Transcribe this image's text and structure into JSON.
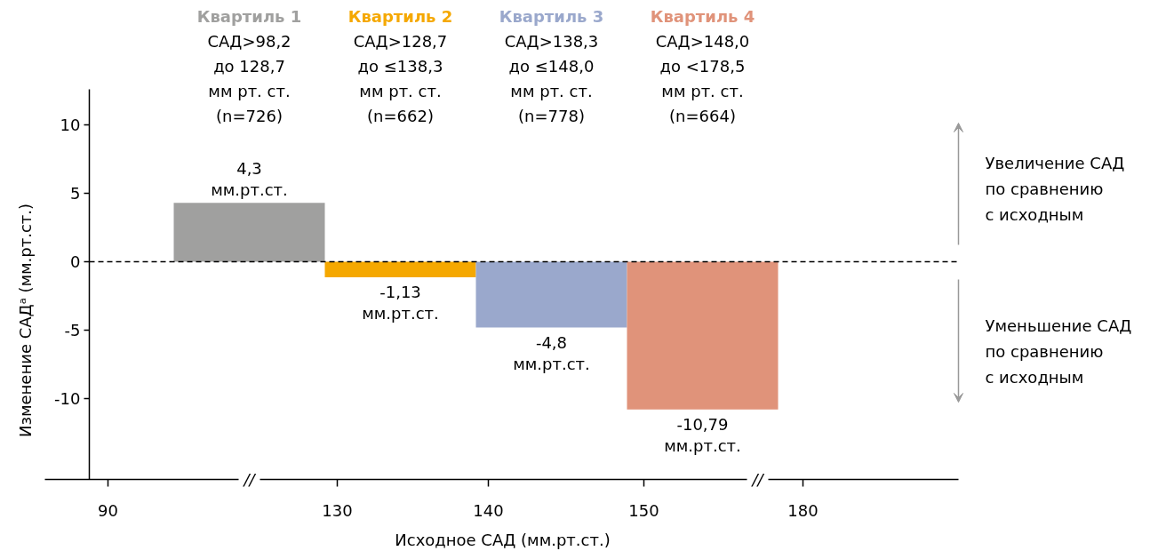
{
  "chart_data": {
    "type": "bar",
    "categories": [
      "Квартиль 1\nСАД>98,2\nдо 128,7\nмм рт. ст.\n(n=726)",
      "Квартиль 2\nСАД>128,7\nдо ≤138,3\nмм рт. ст.\n(n=662)",
      "Квартиль 3\nСАД>138,3\nдо ≤148,0\nмм рт. ст.\n(n=778)",
      "Квартиль 4\nСАД>148,0\nдо <178,5\nмм рт. ст.\n(n=664)"
    ],
    "colors": [
      "#a0a09f",
      "#f5a800",
      "#9aa8cc",
      "#e0937a"
    ],
    "values": [
      4.3,
      -1.13,
      -4.8,
      -10.79
    ],
    "value_labels": [
      "4,3\nмм.рт.ст.",
      "-1,13\nмм.рт.ст.",
      "-4,8\nмм.рт.ст.",
      "-10,79\nмм.рт.ст."
    ],
    "ylim": [
      -15.9,
      12.6
    ],
    "yticks": [
      -10,
      -5,
      0,
      5,
      10
    ],
    "xlabel": "Исходное САД (мм.рт.ст.)",
    "ylabel": "Изменение САДᵃ (мм.рт.ст.)",
    "ref_lines": [
      {
        "axis": "y",
        "value": 0,
        "line_style": "dashed",
        "color": "#000000"
      }
    ],
    "annotations": [
      "Увеличение САД\nпо сравнению\nс исходным",
      "Уменьшение САД\nпо сравнению\nс исходным",
      "//",
      "//",
      "90",
      "130",
      "140",
      "150",
      "180"
    ],
    "grid": false
  }
}
